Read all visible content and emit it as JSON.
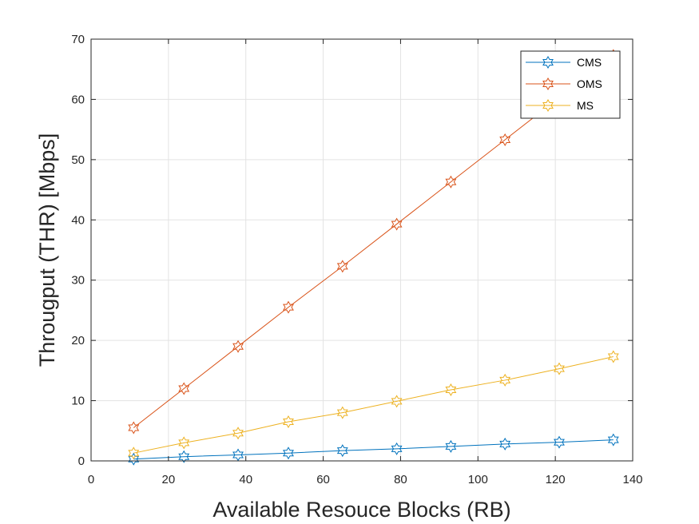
{
  "chart_data": {
    "type": "line",
    "title": "",
    "xlabel": "Available Resouce Blocks (RB)",
    "ylabel": "Througput (THR) [Mbps]",
    "xlim": [
      0,
      140
    ],
    "ylim": [
      0,
      70
    ],
    "xticks": [
      0,
      20,
      40,
      60,
      80,
      100,
      120,
      140
    ],
    "yticks": [
      0,
      10,
      20,
      30,
      40,
      50,
      60,
      70
    ],
    "grid": true,
    "legend_position": "top-right",
    "marker": "hexagram",
    "x": [
      11,
      24,
      38,
      51,
      65,
      79,
      93,
      107,
      121,
      135
    ],
    "series": [
      {
        "name": "CMS",
        "color": "#0072BD",
        "values": [
          0.3,
          0.7,
          1.0,
          1.3,
          1.7,
          2.0,
          2.4,
          2.8,
          3.1,
          3.5
        ]
      },
      {
        "name": "OMS",
        "color": "#D95319",
        "values": [
          5.5,
          12.0,
          19.0,
          25.5,
          32.3,
          39.3,
          46.3,
          53.3,
          60.3,
          67.3
        ]
      },
      {
        "name": "MS",
        "color": "#EDB120",
        "values": [
          1.3,
          3.0,
          4.6,
          6.5,
          8.0,
          9.9,
          11.8,
          13.4,
          15.3,
          17.3
        ]
      }
    ]
  }
}
